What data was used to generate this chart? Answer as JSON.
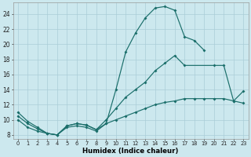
{
  "xlabel": "Humidex (Indice chaleur)",
  "bg_color": "#cce8ee",
  "grid_color": "#aacdd8",
  "line_color": "#1a6e6a",
  "xticks": [
    0,
    1,
    2,
    3,
    4,
    5,
    6,
    7,
    8,
    9,
    10,
    11,
    12,
    13,
    14,
    15,
    16,
    17,
    18,
    19,
    20,
    21,
    22,
    23
  ],
  "yticks": [
    8,
    10,
    12,
    14,
    16,
    18,
    20,
    22,
    24
  ],
  "line1_x": [
    0,
    1,
    2,
    3,
    4,
    5,
    6,
    7,
    8,
    9,
    10,
    11,
    12,
    13,
    14,
    15,
    16,
    17,
    18,
    19
  ],
  "line1_y": [
    11.0,
    9.8,
    9.0,
    8.2,
    8.0,
    9.2,
    9.5,
    9.3,
    8.7,
    9.5,
    14.0,
    19.0,
    21.5,
    23.5,
    24.8,
    25.0,
    24.5,
    21.0,
    20.5,
    19.2
  ],
  "line2_x": [
    0,
    1,
    2,
    3,
    4,
    5,
    6,
    7,
    8,
    9,
    10,
    11,
    12,
    13,
    14,
    15,
    16,
    17,
    20,
    21,
    22,
    23
  ],
  "line2_y": [
    10.5,
    9.5,
    8.8,
    8.2,
    8.0,
    9.2,
    9.5,
    9.3,
    8.7,
    10.0,
    11.5,
    13.0,
    14.0,
    15.0,
    16.5,
    17.5,
    18.5,
    17.2,
    17.2,
    17.2,
    12.5,
    13.8
  ],
  "line3_x": [
    0,
    1,
    2,
    3,
    4,
    5,
    6,
    7,
    8,
    9,
    10,
    11,
    12,
    13,
    14,
    15,
    16,
    17,
    18,
    19,
    20,
    21,
    22,
    23
  ],
  "line3_y": [
    10.0,
    9.0,
    8.5,
    8.2,
    8.0,
    9.0,
    9.2,
    9.0,
    8.5,
    9.5,
    10.0,
    10.5,
    11.0,
    11.5,
    12.0,
    12.3,
    12.5,
    12.8,
    12.8,
    12.8,
    12.8,
    12.8,
    12.5,
    12.2
  ]
}
